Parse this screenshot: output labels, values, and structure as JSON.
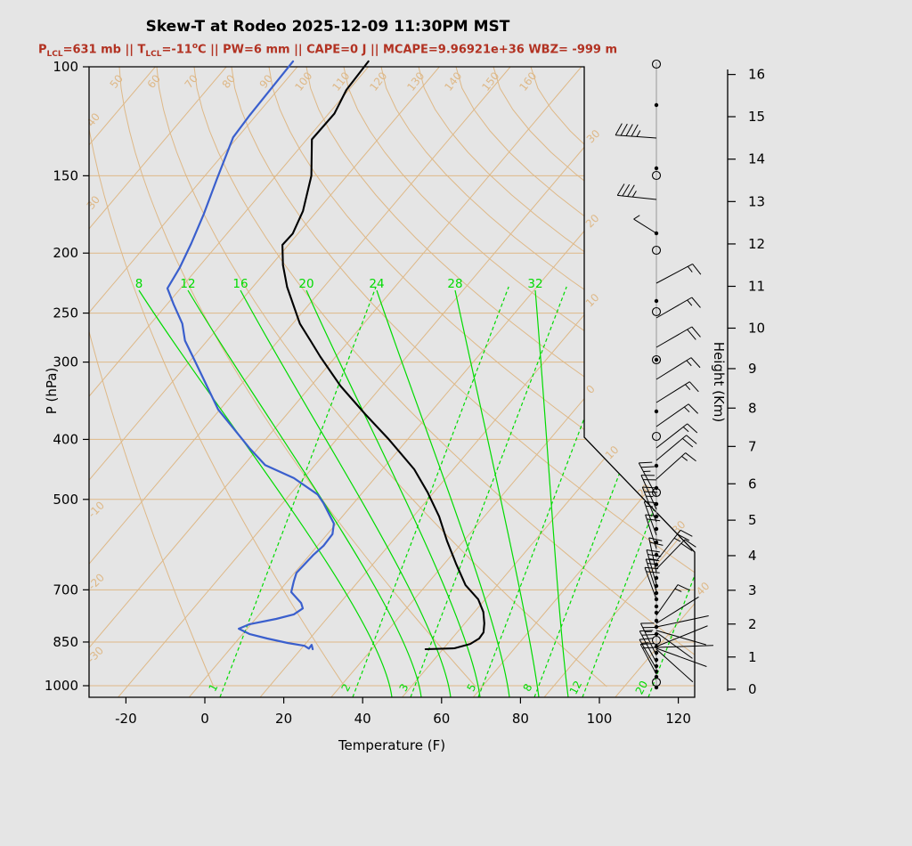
{
  "title": "Skew-T at Rodeo 2025-12-09 11:30PM MST",
  "subtitle": {
    "color": "#B23222",
    "segments": [
      {
        "text": "P",
        "style": "normal"
      },
      {
        "text": "LCL",
        "style": "sub"
      },
      {
        "text": "=631 mb || T",
        "style": "normal"
      },
      {
        "text": "LCL",
        "style": "sub"
      },
      {
        "text": "=-11",
        "style": "normal"
      },
      {
        "text": "o",
        "style": "sup"
      },
      {
        "text": "C || PW=6 mm || CAPE=0 J || MCAPE=9.96921e+36 WBZ= -999 m",
        "style": "normal"
      }
    ]
  },
  "colors": {
    "background": "#E5E5E5",
    "grid_tan": "#DEB887",
    "moist_green": "#00DB00",
    "dewpoint_blue": "#3A5FCD",
    "temperature_black": "#000000",
    "subtitle_red": "#B23222",
    "staff_gray": "#999999",
    "frame_black": "#000000"
  },
  "axes": {
    "pressure": {
      "label": "P (hPa)",
      "ticks": [
        100,
        150,
        200,
        250,
        300,
        400,
        500,
        700,
        850,
        1000
      ]
    },
    "temperature": {
      "label": "Temperature (F)",
      "ticks": [
        -20,
        0,
        20,
        40,
        60,
        80,
        100,
        120
      ]
    },
    "height": {
      "label": "Height (Km)",
      "ticks": [
        16,
        15,
        14,
        13,
        12,
        11,
        10,
        9,
        8,
        7,
        6,
        5,
        4,
        3,
        2,
        1,
        0
      ]
    }
  },
  "grid_labels": {
    "dry_adiabat_top": [
      "50",
      "60",
      "70",
      "80",
      "90",
      "100",
      "110",
      "120",
      "130",
      "140",
      "150",
      "160"
    ],
    "dry_adiabat_left": [
      "40",
      "30"
    ],
    "isotherm_left": [
      "-10",
      "-20",
      "-30"
    ],
    "isotherm_right_vertical": [
      "30",
      "20",
      "10",
      "0"
    ],
    "isotherm_right_diagonal": [
      "10",
      "20",
      "30",
      "40"
    ],
    "moist_adiabat_labels": [
      "8",
      "12",
      "16",
      "20",
      "24",
      "28",
      "32"
    ],
    "mixing_ratio_labels": [
      "1",
      "2",
      "3",
      "5",
      "8",
      "12",
      "20"
    ]
  },
  "chart_data": {
    "type": "line",
    "title": "Skew-T at Rodeo 2025-12-09 11:30PM MST",
    "xlabel": "Temperature (F)",
    "ylabel": "P (hPa)",
    "y_scale": "log",
    "x_range_f": [
      -20,
      120
    ],
    "p_range_hpa": [
      100,
      1050
    ],
    "height_km_range": [
      0,
      16
    ],
    "series": [
      {
        "name": "temperature",
        "color": "#000000",
        "points_p_tf": [
          [
            98,
            -94.0
          ],
          [
            109,
            -93.5
          ],
          [
            119,
            -91.5
          ],
          [
            131,
            -91.7
          ],
          [
            150,
            -84.1
          ],
          [
            171,
            -78.7
          ],
          [
            186,
            -76.5
          ],
          [
            194,
            -76.7
          ],
          [
            209,
            -72.3
          ],
          [
            227,
            -66.5
          ],
          [
            260,
            -55.5
          ],
          [
            277,
            -49.2
          ],
          [
            294,
            -43.3
          ],
          [
            328,
            -31.9
          ],
          [
            364,
            -19.7
          ],
          [
            400,
            -8.3
          ],
          [
            447,
            4.5
          ],
          [
            487,
            12.8
          ],
          [
            533,
            20.9
          ],
          [
            583,
            28.0
          ],
          [
            635,
            35.2
          ],
          [
            688,
            42.2
          ],
          [
            725,
            48.4
          ],
          [
            760,
            52.4
          ],
          [
            793,
            55.1
          ],
          [
            820,
            56.8
          ],
          [
            839,
            57.0
          ],
          [
            856,
            55.9
          ],
          [
            870,
            52.8
          ],
          [
            873,
            45.7
          ]
        ]
      },
      {
        "name": "dewpoint",
        "color": "#3A5FCD",
        "points_p_tf": [
          [
            98,
            -113.1
          ],
          [
            120,
            -112.6
          ],
          [
            130,
            -112.1
          ],
          [
            152,
            -107.3
          ],
          [
            173,
            -103.2
          ],
          [
            193,
            -100.1
          ],
          [
            211,
            -97.9
          ],
          [
            228,
            -96.6
          ],
          [
            242,
            -91.6
          ],
          [
            260,
            -85.3
          ],
          [
            277,
            -81.0
          ],
          [
            294,
            -75.6
          ],
          [
            358,
            -57.9
          ],
          [
            413,
            -41.8
          ],
          [
            440,
            -34.2
          ],
          [
            462,
            -24.1
          ],
          [
            491,
            -14.6
          ],
          [
            507,
            -11.3
          ],
          [
            547,
            -4.3
          ],
          [
            569,
            -2.4
          ],
          [
            594,
            -2.2
          ],
          [
            614,
            -2.8
          ],
          [
            657,
            -3.3
          ],
          [
            679,
            -2.1
          ],
          [
            706,
            -0.5
          ],
          [
            735,
            4.3
          ],
          [
            750,
            5.9
          ],
          [
            767,
            4.9
          ],
          [
            780,
            1.4
          ],
          [
            796,
            -4.3
          ],
          [
            809,
            -6.0
          ],
          [
            825,
            -2.2
          ],
          [
            839,
            3.3
          ],
          [
            853,
            9.4
          ],
          [
            862,
            14.3
          ],
          [
            871,
            16.0
          ],
          [
            859,
            15.9
          ],
          [
            873,
            17.1
          ]
        ]
      }
    ]
  },
  "wind_barbs": [
    {
      "y": 72,
      "m": "circle"
    },
    {
      "y": 118,
      "m": "dot"
    },
    {
      "y": 155,
      "s": [
        176,
        46,
        4,
        1
      ]
    },
    {
      "y": 189,
      "m": "dot"
    },
    {
      "y": 197,
      "m": "circle"
    },
    {
      "y": 224,
      "s": [
        174,
        44,
        3,
        1
      ]
    },
    {
      "y": 262,
      "m": "dot",
      "s": [
        148,
        30,
        0,
        1
      ]
    },
    {
      "y": 281,
      "m": "circle"
    },
    {
      "y": 318,
      "s": [
        28,
        46,
        1,
        1
      ]
    },
    {
      "y": 338,
      "m": "dot"
    },
    {
      "y": 350,
      "m": "circle"
    },
    {
      "y": 357,
      "s": [
        30,
        46,
        1,
        1
      ]
    },
    {
      "y": 390,
      "s": [
        30,
        46,
        2,
        0
      ]
    },
    {
      "y": 404,
      "m": "circled-dot"
    },
    {
      "y": 426,
      "s": [
        32,
        46,
        1,
        1
      ]
    },
    {
      "y": 452,
      "s": [
        32,
        44,
        1,
        1
      ]
    },
    {
      "y": 462,
      "m": "dot"
    },
    {
      "y": 479,
      "s": [
        35,
        44,
        1,
        1
      ]
    },
    {
      "y": 490,
      "m": "circle"
    },
    {
      "y": 503,
      "s": [
        38,
        44,
        1,
        1
      ]
    },
    {
      "y": 517,
      "s": [
        40,
        44,
        2,
        0
      ]
    },
    {
      "y": 523,
      "m": "dot"
    },
    {
      "y": 538,
      "s": [
        42,
        44,
        1,
        1
      ]
    },
    {
      "y": 548,
      "m": "dot"
    },
    {
      "y": 553,
      "m": "circle"
    },
    {
      "y": 557,
      "s": [
        118,
        42,
        2,
        1
      ]
    },
    {
      "y": 566,
      "m": "dot"
    },
    {
      "y": 572,
      "s": [
        114,
        42,
        2,
        0
      ]
    },
    {
      "y": 580,
      "m": "dot"
    },
    {
      "y": 586,
      "s": [
        112,
        42,
        2,
        1
      ]
    },
    {
      "y": 594,
      "m": "dot"
    },
    {
      "y": 601,
      "s": [
        110,
        40,
        1,
        1
      ]
    },
    {
      "y": 609,
      "m": "dot"
    },
    {
      "y": 616,
      "s": [
        108,
        40,
        2,
        0
      ]
    },
    {
      "y": 623,
      "m": "dot"
    },
    {
      "y": 630,
      "s": [
        52,
        44,
        2,
        1
      ]
    },
    {
      "y": 634,
      "m": "dot"
    },
    {
      "y": 639,
      "s": [
        46,
        46,
        2,
        0
      ]
    },
    {
      "y": 643,
      "s": [
        102,
        40,
        2,
        0
      ]
    },
    {
      "y": 649,
      "m": "dot"
    },
    {
      "y": 656,
      "s": [
        106,
        40,
        2,
        1
      ]
    },
    {
      "y": 658,
      "m": "dot"
    },
    {
      "y": 664,
      "s": [
        108,
        38,
        1,
        1
      ]
    },
    {
      "y": 666,
      "m": "dot"
    },
    {
      "y": 673,
      "m": "dot",
      "s": [
        110,
        38,
        2,
        0
      ]
    },
    {
      "y": 681,
      "m": "dot"
    },
    {
      "y": 688,
      "m": "dot"
    },
    {
      "y": 691,
      "s": [
        55,
        42,
        1,
        1
      ]
    },
    {
      "y": 697,
      "m": "dot"
    },
    {
      "y": 700,
      "s": [
        32,
        56,
        0,
        0
      ]
    },
    {
      "y": 704,
      "m": "dot",
      "s": [
        12,
        60,
        0,
        0
      ]
    },
    {
      "y": 708,
      "s": [
        -16,
        58,
        0,
        0
      ]
    },
    {
      "y": 710,
      "s": [
        -36,
        50,
        0,
        0
      ]
    },
    {
      "y": 712,
      "m": "dot"
    },
    {
      "y": 719,
      "m": "circle"
    },
    {
      "y": 726,
      "m": "dot",
      "s": [
        22,
        62,
        0,
        0
      ]
    },
    {
      "y": 727,
      "s": [
        2,
        64,
        0,
        0
      ]
    },
    {
      "y": 728,
      "s": [
        -20,
        60,
        0,
        0
      ]
    },
    {
      "y": 729,
      "s": [
        -42,
        55,
        0,
        0
      ]
    },
    {
      "y": 733,
      "m": "dot"
    },
    {
      "y": 736,
      "s": [
        116,
        40,
        2,
        1
      ]
    },
    {
      "y": 741,
      "m": "dot"
    },
    {
      "y": 744,
      "s": [
        118,
        40,
        2,
        0
      ]
    },
    {
      "y": 748,
      "m": "dot"
    },
    {
      "y": 751,
      "s": [
        120,
        38,
        1,
        1
      ]
    },
    {
      "y": 754,
      "m": "dot"
    },
    {
      "y": 757,
      "s": [
        118,
        38,
        2,
        0
      ]
    },
    {
      "y": 760,
      "m": "dot"
    },
    {
      "y": 766,
      "m": "circle"
    },
    {
      "y": 772,
      "m": "dot"
    }
  ]
}
